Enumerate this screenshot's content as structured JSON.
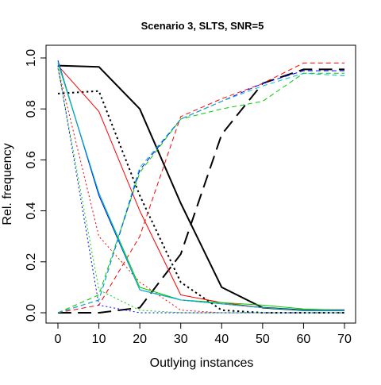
{
  "chart_data": {
    "type": "line",
    "title": "Scenario 3, SLTS, SNR=5",
    "xlabel": "Outlying instances",
    "ylabel": "Rel. frequency",
    "xlim": [
      0,
      70
    ],
    "ylim": [
      0,
      1
    ],
    "x_ticks": [
      0,
      10,
      20,
      30,
      40,
      50,
      60,
      70
    ],
    "y_ticks": [
      0.0,
      0.2,
      0.4,
      0.6,
      0.8,
      1.0
    ],
    "x_tick_labels": [
      "0",
      "10",
      "20",
      "30",
      "40",
      "50",
      "60",
      "70"
    ],
    "y_tick_labels": [
      "0.0",
      "0.2",
      "0.4",
      "0.6",
      "0.8",
      "1.0"
    ],
    "grid": false,
    "x": [
      0,
      10,
      20,
      30,
      40,
      50,
      60,
      70
    ],
    "series": [
      {
        "color": "#000000",
        "dash": "solid",
        "width": 2,
        "values": [
          0.97,
          0.965,
          0.8,
          0.43,
          0.1,
          0.02,
          0.01,
          0.01
        ]
      },
      {
        "color": "#000000",
        "dash": "dotted",
        "width": 2,
        "values": [
          0.86,
          0.87,
          0.46,
          0.12,
          0.01,
          0.0,
          0.0,
          0.0
        ]
      },
      {
        "color": "#000000",
        "dash": "longdash",
        "width": 2,
        "values": [
          0.0,
          0.0,
          0.02,
          0.23,
          0.7,
          0.9,
          0.955,
          0.955
        ]
      },
      {
        "color": "#ff0000",
        "dash": "solid",
        "width": 1,
        "values": [
          0.97,
          0.79,
          0.4,
          0.07,
          0.04,
          0.02,
          0.01,
          0.01
        ]
      },
      {
        "color": "#ff0000",
        "dash": "dotted",
        "width": 1,
        "values": [
          0.96,
          0.3,
          0.12,
          0.01,
          0.0,
          0.0,
          0.0,
          0.0
        ]
      },
      {
        "color": "#ff0000",
        "dash": "dashed",
        "width": 1,
        "values": [
          0.0,
          0.03,
          0.3,
          0.77,
          0.84,
          0.9,
          0.98,
          0.98
        ]
      },
      {
        "color": "#00cc00",
        "dash": "solid",
        "width": 1,
        "values": [
          0.98,
          0.47,
          0.1,
          0.05,
          0.04,
          0.03,
          0.015,
          0.01
        ]
      },
      {
        "color": "#00cc00",
        "dash": "dotted",
        "width": 1,
        "values": [
          0.96,
          0.09,
          0.01,
          0.0,
          0.0,
          0.0,
          0.0,
          0.0
        ]
      },
      {
        "color": "#00cc00",
        "dash": "dashed",
        "width": 1,
        "values": [
          0.0,
          0.07,
          0.55,
          0.76,
          0.8,
          0.83,
          0.94,
          0.94
        ]
      },
      {
        "color": "#0000ff",
        "dash": "solid",
        "width": 1,
        "values": [
          0.99,
          0.46,
          0.09,
          0.05,
          0.035,
          0.02,
          0.01,
          0.01
        ]
      },
      {
        "color": "#0000ff",
        "dash": "dotted",
        "width": 1,
        "values": [
          0.97,
          0.03,
          0.0,
          0.0,
          0.0,
          0.0,
          0.0,
          0.0
        ]
      },
      {
        "color": "#0000ff",
        "dash": "dashed",
        "width": 1,
        "values": [
          0.0,
          0.05,
          0.56,
          0.76,
          0.83,
          0.9,
          0.95,
          0.95
        ]
      },
      {
        "color": "#00bfbf",
        "dash": "solid",
        "width": 1,
        "values": [
          0.985,
          0.47,
          0.09,
          0.05,
          0.035,
          0.02,
          0.01,
          0.01
        ]
      },
      {
        "color": "#00bfbf",
        "dash": "dashed",
        "width": 1,
        "values": [
          0.0,
          0.05,
          0.57,
          0.76,
          0.83,
          0.89,
          0.94,
          0.93
        ]
      }
    ]
  }
}
